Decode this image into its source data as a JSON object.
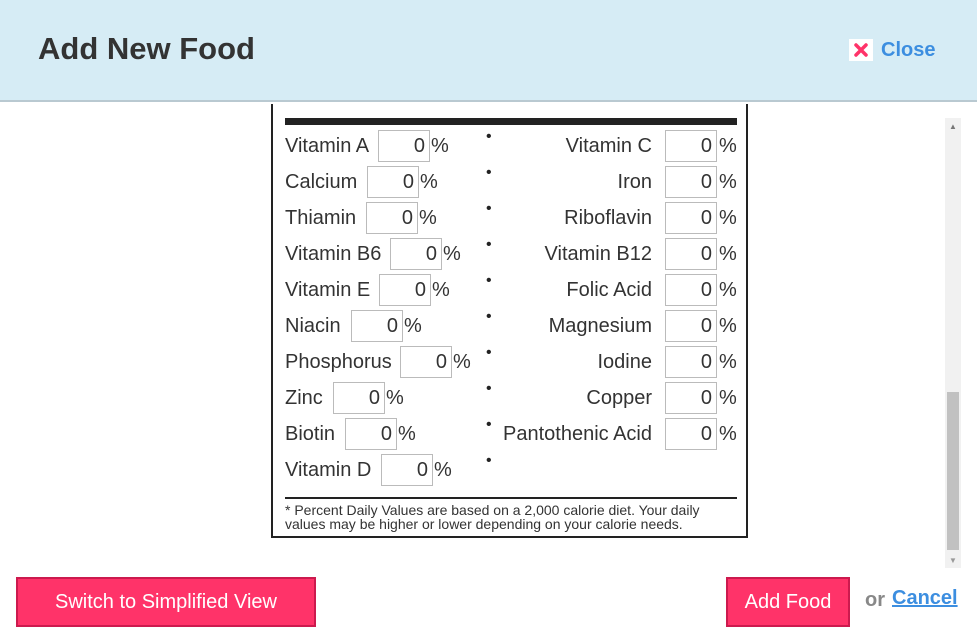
{
  "dialog": {
    "title": "Add New Food",
    "close_label": "Close",
    "close_icon": "close-icon",
    "accent_color": "#3c8ee0",
    "header_color": "#d6ecf5",
    "button_color": "#ff3369"
  },
  "nutrients": {
    "left": [
      {
        "label": "Vitamin A",
        "value": "0",
        "unit": "%"
      },
      {
        "label": "Calcium",
        "value": "0",
        "unit": "%"
      },
      {
        "label": "Thiamin",
        "value": "0",
        "unit": "%"
      },
      {
        "label": "Vitamin B6",
        "value": "0",
        "unit": "%"
      },
      {
        "label": "Vitamin E",
        "value": "0",
        "unit": "%"
      },
      {
        "label": "Niacin",
        "value": "0",
        "unit": "%"
      },
      {
        "label": "Phosphorus",
        "value": "0",
        "unit": "%"
      },
      {
        "label": "Zinc",
        "value": "0",
        "unit": "%"
      },
      {
        "label": "Biotin",
        "value": "0",
        "unit": "%"
      },
      {
        "label": "Vitamin D",
        "value": "0",
        "unit": "%"
      }
    ],
    "right": [
      {
        "label": "Vitamin C",
        "value": "0",
        "unit": "%"
      },
      {
        "label": "Iron",
        "value": "0",
        "unit": "%"
      },
      {
        "label": "Riboflavin",
        "value": "0",
        "unit": "%"
      },
      {
        "label": "Vitamin B12",
        "value": "0",
        "unit": "%"
      },
      {
        "label": "Folic Acid",
        "value": "0",
        "unit": "%"
      },
      {
        "label": "Magnesium",
        "value": "0",
        "unit": "%"
      },
      {
        "label": "Iodine",
        "value": "0",
        "unit": "%"
      },
      {
        "label": "Copper",
        "value": "0",
        "unit": "%"
      },
      {
        "label": "Pantothenic Acid",
        "value": "0",
        "unit": "%"
      }
    ],
    "separator": "•"
  },
  "footnote": "* Percent Daily Values are based on a 2,000 calorie diet. Your daily values may be higher or lower depending on your calorie needs.",
  "actions": {
    "switch_label": "Switch to Simplified View",
    "add_label": "Add Food",
    "or_label": "or",
    "cancel_label": "Cancel"
  }
}
